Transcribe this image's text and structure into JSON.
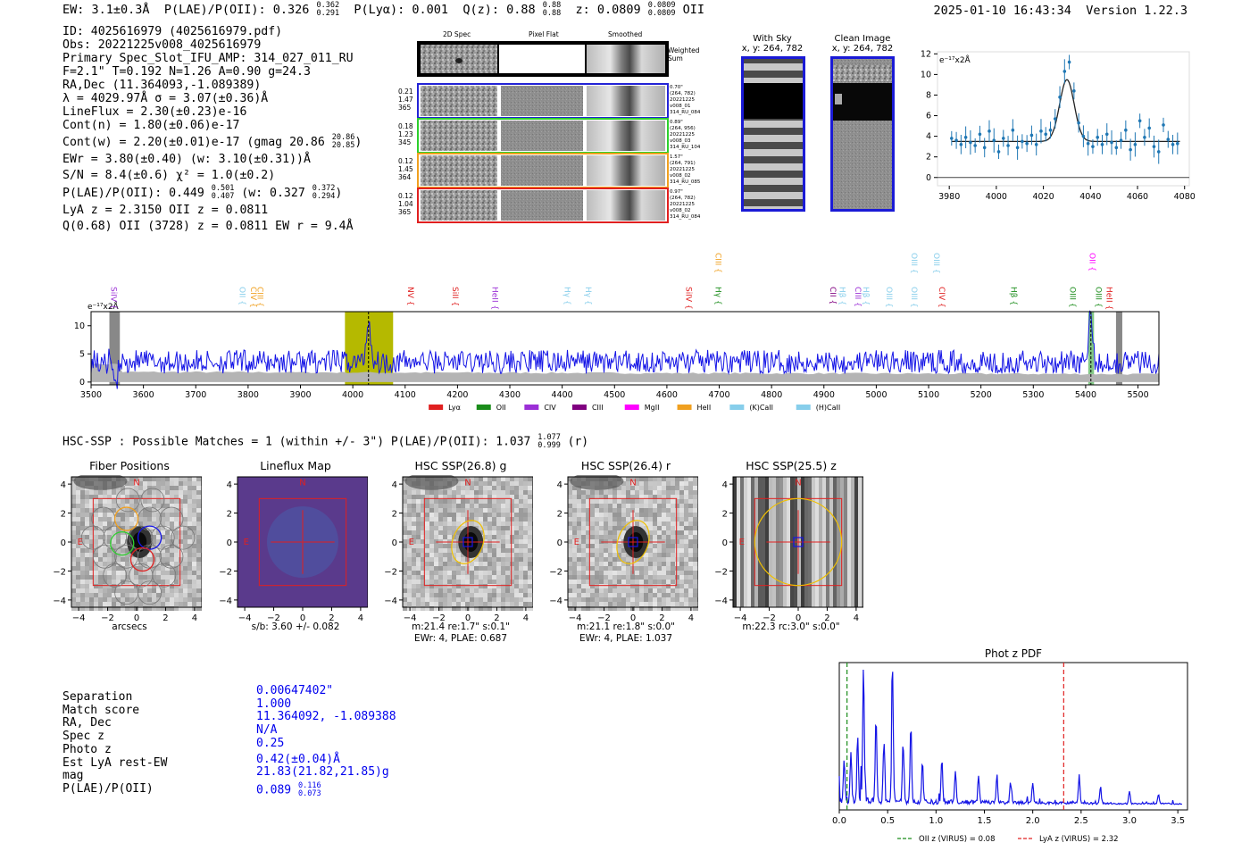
{
  "header": {
    "ew": "EW: 3.1±0.3Å",
    "plae": "P(LAE)/P(OII): 0.326",
    "plae_hi": "0.362",
    "plae_lo": "0.291",
    "plya": "P(Lyα): 0.001",
    "qz": "Q(z): 0.88",
    "qz_hi": "0.88",
    "qz_lo": "0.88",
    "z": "z: 0.0809",
    "z_hi": "0.0809",
    "z_lo": "0.0809",
    "z_line": "OII",
    "timestamp": "2025-01-10 16:43:34",
    "version": "Version 1.22.3"
  },
  "info": {
    "id": "ID: 4025616979 (4025616979.pdf)",
    "obs": "Obs: 20221225v008_4025616979",
    "primary": "Primary Spec_Slot_IFU_AMP: 314_027_011_RU",
    "params": "F=2.1\"  T=0.192  N=1.26  A=0.90  g=24.3",
    "radec": "RA,Dec (11.364093,-1.089389)",
    "lambda": "λ = 4029.97Å  σ = 3.07(±0.36)Å",
    "lineflux": "LineFlux = 2.30(±0.23)e-16",
    "cont_n": "Cont(n) = 1.80(±0.06)e-17",
    "cont_w": "Cont(w) = 2.20(±0.01)e-17 (gmag 20.86",
    "gmag_hi": "20.86",
    "gmag_lo": "20.85",
    "cont_w_close": ")",
    "ewr": "EWr = 3.80(±0.40) (w: 3.10(±0.31))Å",
    "sn": "S/N = 8.4(±0.6)  χ² = 1.0(±0.2)",
    "plae": "P(LAE)/P(OII): 0.449",
    "plae_hi": "0.501",
    "plae_lo": "0.407",
    "plae_w": "(w: 0.327",
    "plae_w_hi": "0.372",
    "plae_w_lo": "0.294",
    "plae_w_close": ")",
    "lyaz": "LyA z = 2.3150   OII z = 0.0811",
    "q68": "Q(0.68) OII (3728) z = 0.0811  EW r = 9.4Å"
  },
  "fiber_panel": {
    "col_2d": "2D Spec",
    "col_flat": "Pixel Flat",
    "col_smooth": "Smoothed",
    "weighted": "Weighted Sum",
    "rows": [
      {
        "l1": "0.21",
        "l2": "1.47",
        "l3": "365",
        "r1": "0.70\"",
        "r2": "(264, 782)",
        "r3": "20221225",
        "r4": "v008_01",
        "r5": "314_RU_084",
        "color": "#2323d6"
      },
      {
        "l1": "0.18",
        "l2": "1.23",
        "l3": "345",
        "r1": "0.89\"",
        "r2": "(264, 956)",
        "r3": "20221225",
        "r4": "v008_03",
        "r5": "314_RU_104",
        "color": "#2ccf2c"
      },
      {
        "l1": "0.12",
        "l2": "1.45",
        "l3": "364",
        "r1": "1.57\"",
        "r2": "(264, 791)",
        "r3": "20221225",
        "r4": "v008_02",
        "r5": "314_RU_085",
        "color": "#f0a020"
      },
      {
        "l1": "0.12",
        "l2": "1.04",
        "l3": "365",
        "r1": "0.97\"",
        "r2": "(264, 782)",
        "r3": "20221225",
        "r4": "v008_02",
        "r5": "314_RU_084",
        "color": "#e02020"
      }
    ]
  },
  "sky": {
    "with_sky": "With Sky",
    "with_sky_xy": "x, y: 264, 782",
    "clean": "Clean Image",
    "clean_xy": "x, y: 264, 782"
  },
  "zoom_chart": {
    "type": "line",
    "title": "",
    "ylabel": "e⁻¹⁷x2Å",
    "xlim": [
      3975,
      4082
    ],
    "ylim": [
      -0.8,
      12.2
    ],
    "xticks": [
      3980,
      4000,
      4020,
      4040,
      4060,
      4080
    ],
    "yticks": [
      0,
      2,
      4,
      6,
      8,
      10,
      12
    ],
    "x": [
      3981,
      3983,
      3985,
      3987,
      3989,
      3991,
      3993,
      3995,
      3997,
      3999,
      4001,
      4003,
      4005,
      4007,
      4009,
      4011,
      4013,
      4015,
      4017,
      4019,
      4021,
      4023,
      4025,
      4027,
      4029,
      4031,
      4033,
      4035,
      4037,
      4039,
      4041,
      4043,
      4045,
      4047,
      4049,
      4051,
      4053,
      4055,
      4057,
      4059,
      4061,
      4063,
      4065,
      4067,
      4069,
      4071,
      4073,
      4075,
      4077
    ],
    "values": [
      3.8,
      3.6,
      3.2,
      3.9,
      3.4,
      3.1,
      4.2,
      2.9,
      4.5,
      3.6,
      2.5,
      3.8,
      3.1,
      4.6,
      2.9,
      3.5,
      3.3,
      4.1,
      3.2,
      4.5,
      4.2,
      4.6,
      5.7,
      7.8,
      10.3,
      11.2,
      8.4,
      5.3,
      4.0,
      3.3,
      3.0,
      3.9,
      3.2,
      4.2,
      3.4,
      2.9,
      3.6,
      4.6,
      2.7,
      3.2,
      5.5,
      3.9,
      4.8,
      3.0,
      2.5,
      5.1,
      3.7,
      3.2,
      3.3
    ],
    "fit": {
      "continuum": 3.5,
      "amplitude": 6.0,
      "center": 4030.0,
      "sigma": 3.07
    }
  },
  "spectrum": {
    "type": "line",
    "ylabel": "e⁻¹⁷x2Å",
    "xlim": [
      3500,
      5540
    ],
    "ylim": [
      -0.5,
      12.5
    ],
    "xticks": [
      3500,
      3600,
      3700,
      3800,
      3900,
      4000,
      4100,
      4200,
      4300,
      4400,
      4500,
      4600,
      4700,
      4800,
      4900,
      5000,
      5100,
      5200,
      5300,
      5400,
      5500
    ],
    "yticks": [
      0,
      5,
      10
    ],
    "highlight_range": [
      3985,
      4077
    ],
    "line_marker": 4030,
    "emission_lines": [
      {
        "label": "SiIV",
        "wave": 3533,
        "color": "#9b2fd6",
        "row": 0
      },
      {
        "label": "OII",
        "wave": 3779,
        "color": "#87ceeb",
        "row": 0
      },
      {
        "label": "CIV",
        "wave": 3800,
        "color": "#f0a020",
        "row": 0
      },
      {
        "label": "CIII",
        "wave": 3813,
        "color": "#f0a020",
        "row": 0
      },
      {
        "label": "NV",
        "wave": 4100,
        "color": "#e02020",
        "row": 0
      },
      {
        "label": "SiII",
        "wave": 4186,
        "color": "#e02020",
        "row": 0
      },
      {
        "label": "HeII",
        "wave": 4262,
        "color": "#9b2fd6",
        "row": 0
      },
      {
        "label": "Hγ",
        "wave": 4400,
        "color": "#87ceeb",
        "row": 0
      },
      {
        "label": "Hγ",
        "wave": 4440,
        "color": "#87ceeb",
        "row": 0
      },
      {
        "label": "SiIV",
        "wave": 4632,
        "color": "#e02020",
        "row": 0
      },
      {
        "label": "CIII",
        "wave": 4688,
        "color": "#f0a020",
        "row": 1
      },
      {
        "label": "Hγ",
        "wave": 4688,
        "color": "#1a8c1a",
        "row": 0
      },
      {
        "label": "CII",
        "wave": 4907,
        "color": "#800080",
        "row": 0
      },
      {
        "label": "Hβ",
        "wave": 4925,
        "color": "#87ceeb",
        "row": 0
      },
      {
        "label": "CIII",
        "wave": 4955,
        "color": "#9b2fd6",
        "row": 0
      },
      {
        "label": "Hβ",
        "wave": 4970,
        "color": "#87ceeb",
        "row": 0
      },
      {
        "label": "OIII",
        "wave": 5015,
        "color": "#87ceeb",
        "row": 0
      },
      {
        "label": "OIII",
        "wave": 5062,
        "color": "#87ceeb",
        "row": 0
      },
      {
        "label": "OIII",
        "wave": 5062,
        "color": "#87ceeb",
        "row": 1
      },
      {
        "label": "OIII",
        "wave": 5105,
        "color": "#87ceeb",
        "row": 1
      },
      {
        "label": "CIV",
        "wave": 5115,
        "color": "#e02020",
        "row": 0
      },
      {
        "label": "Hβ",
        "wave": 5253,
        "color": "#1a8c1a",
        "row": 0
      },
      {
        "label": "OIII",
        "wave": 5365,
        "color": "#1a8c1a",
        "row": 0
      },
      {
        "label": "OII",
        "wave": 5403,
        "color": "#ff00ff",
        "row": 1
      },
      {
        "label": "OIII",
        "wave": 5415,
        "color": "#1a8c1a",
        "row": 0
      },
      {
        "label": "HeII",
        "wave": 5435,
        "color": "#e02020",
        "row": 0
      }
    ],
    "legend": [
      {
        "label": "Lyα",
        "color": "#e02020"
      },
      {
        "label": "OII",
        "color": "#1a8c1a"
      },
      {
        "label": "CIV",
        "color": "#9b2fd6"
      },
      {
        "label": "CIII",
        "color": "#800080"
      },
      {
        "label": "MgII",
        "color": "#ff00ff"
      },
      {
        "label": "HeII",
        "color": "#f0a020"
      },
      {
        "label": "(K)CaII",
        "color": "#87ceeb"
      },
      {
        "label": "(H)CaII",
        "color": "#87ceeb"
      }
    ]
  },
  "hsc": {
    "header": "HSC-SSP : Possible Matches = 1 (within +/- 3\")  P(LAE)/P(OII): 1.037",
    "hdr_hi": "1.077",
    "hdr_lo": "0.999",
    "hdr_band": "(r)",
    "cutouts": [
      {
        "title": "Fiber Positions",
        "l1": "arcsecs",
        "l2": ""
      },
      {
        "title": "Lineflux Map",
        "l1": "s/b: 3.60 +/- 0.082",
        "l2": ""
      },
      {
        "title": "HSC SSP(26.8) g",
        "l1": "m:21.4  re:1.7\"  s:0.1\"",
        "l2": "EWr: 4, PLAE: 0.687"
      },
      {
        "title": "HSC SSP(26.4) r",
        "l1": "m:21.1  re:1.8\"  s:0.0\"",
        "l2": "EWr: 4, PLAE: 1.037"
      },
      {
        "title": "HSC SSP(25.5) z",
        "l1": "m:22.3 rc:3.0\"  s:0.0\"",
        "l2": ""
      }
    ],
    "axis_ticks": [
      "−4",
      "−2",
      "0",
      "2",
      "4"
    ],
    "y_ticks": [
      "4",
      "2",
      "0",
      "−2",
      "−4"
    ],
    "north": "N",
    "east": "E"
  },
  "match": {
    "labels": [
      "Separation",
      "Match score",
      "RA, Dec",
      "Spec z",
      "Photo z",
      "Est LyA rest-EW",
      "mag",
      "P(LAE)/P(OII)"
    ],
    "values": [
      "0.00647402\"",
      "1.000",
      "11.364092, -1.089388",
      "N/A",
      "0.25",
      "0.42(±0.04)Å",
      "21.83(21.82,21.85)g",
      "0.089"
    ],
    "plae_hi": "0.116",
    "plae_lo": "0.073"
  },
  "photz_chart": {
    "type": "line",
    "title": "Phot z PDF",
    "xlim": [
      0,
      3.6
    ],
    "xticks": [
      "0.0",
      "0.5",
      "1.0",
      "1.5",
      "2.0",
      "2.5",
      "3.0",
      "3.5"
    ],
    "markers": [
      {
        "label": "OII z (VIRUS) = 0.08",
        "value": 0.08,
        "color": "#1a8c1a"
      },
      {
        "label": "LyA z (VIRUS) = 2.32",
        "value": 2.32,
        "color": "#e02020"
      }
    ],
    "peaks": [
      {
        "x": 0.25,
        "h": 1.0
      },
      {
        "x": 0.55,
        "h": 0.96
      },
      {
        "x": 0.19,
        "h": 0.48
      },
      {
        "x": 0.38,
        "h": 0.62
      },
      {
        "x": 0.66,
        "h": 0.42
      },
      {
        "x": 0.74,
        "h": 0.55
      },
      {
        "x": 0.05,
        "h": 0.3
      },
      {
        "x": 0.12,
        "h": 0.35
      },
      {
        "x": 0.46,
        "h": 0.4
      },
      {
        "x": 1.06,
        "h": 0.3
      },
      {
        "x": 1.2,
        "h": 0.22
      },
      {
        "x": 0.86,
        "h": 0.28
      },
      {
        "x": 1.44,
        "h": 0.2
      },
      {
        "x": 1.63,
        "h": 0.18
      },
      {
        "x": 1.77,
        "h": 0.15
      },
      {
        "x": 2.0,
        "h": 0.14
      },
      {
        "x": 2.48,
        "h": 0.2
      },
      {
        "x": 2.7,
        "h": 0.12
      },
      {
        "x": 3.0,
        "h": 0.09
      },
      {
        "x": 3.3,
        "h": 0.07
      }
    ]
  }
}
